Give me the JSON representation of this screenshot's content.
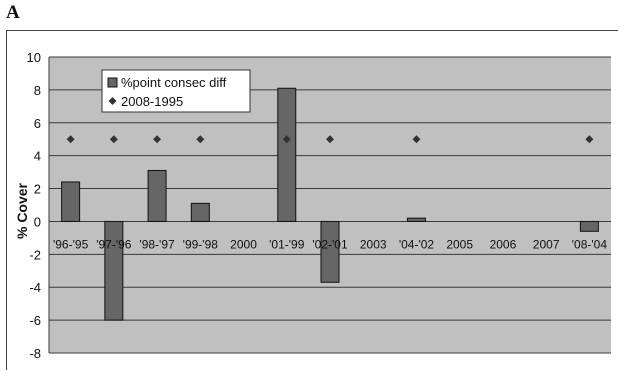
{
  "panel_label": "A",
  "chart_data": {
    "type": "bar",
    "categories": [
      "'96-'95",
      "'97-'96",
      "'98-'97",
      "'99-'98",
      "2000",
      "'01-'99",
      "'02-'01",
      "2003",
      "'04-'02",
      "2005",
      "2006",
      "2007",
      "'08-'04"
    ],
    "series": [
      {
        "name": "%point consec diff",
        "type": "bar",
        "values": [
          2.4,
          -6.0,
          3.1,
          1.1,
          null,
          8.1,
          -3.7,
          null,
          0.2,
          null,
          null,
          null,
          -0.6
        ],
        "color": "#666666"
      },
      {
        "name": "2008-1995",
        "type": "scatter",
        "marker": "diamond",
        "values": [
          5,
          5,
          5,
          5,
          null,
          5,
          5,
          null,
          5,
          null,
          null,
          null,
          5
        ],
        "color": "#333333"
      }
    ],
    "ylabel": "% Cover",
    "ylim": [
      -8,
      10
    ],
    "yticks": [
      -8,
      -6,
      -4,
      -2,
      0,
      2,
      4,
      6,
      8,
      10
    ],
    "grid": true,
    "plot_background": "#c0c0c0",
    "legend_position": "top-left-inside"
  }
}
